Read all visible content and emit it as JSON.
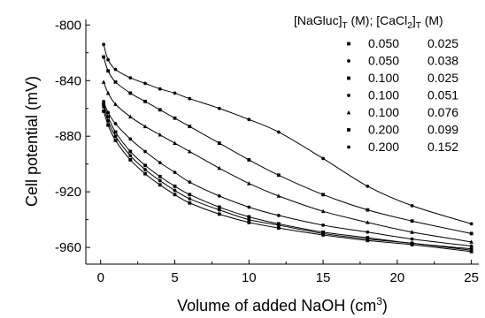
{
  "chart_data": {
    "type": "scatter",
    "xlabel": "Volume of added NaOH (cm",
    "xlabel_sup": "3",
    "xlabel_end": ")",
    "ylabel": "Cell potential (mV)",
    "xlim": [
      -1,
      25.5
    ],
    "ylim": [
      -972,
      -796
    ],
    "x_ticks": [
      0,
      5,
      10,
      15,
      20,
      25
    ],
    "x_tick_labels": [
      "0",
      "5",
      "10",
      "15",
      "20",
      "25"
    ],
    "y_ticks": [
      -800,
      -840,
      -880,
      -920,
      -960
    ],
    "y_tick_labels": [
      "-800",
      "-840",
      "-880",
      "-920",
      "-960"
    ],
    "legend": {
      "header_parts": [
        "[NaGluc]",
        "T",
        " (M); [CaCl",
        "2",
        "]",
        "T",
        " (M)"
      ],
      "placement": "top-right",
      "col1": [
        "0.050",
        "0.050",
        "0.100",
        "0.100",
        "0.100",
        "0.200",
        "0.200"
      ],
      "col2": [
        "0.025",
        "0.038",
        "0.025",
        "0.051",
        "0.076",
        "0.099",
        "0.152"
      ]
    },
    "series": [
      {
        "marker": "square",
        "x": [
          0.2,
          0.5,
          1,
          2,
          3,
          4,
          5,
          6,
          8,
          10,
          12,
          15,
          18,
          21,
          25
        ],
        "y": [
          -862,
          -872,
          -883,
          -897,
          -907,
          -915,
          -922,
          -928,
          -936,
          -942,
          -946,
          -951,
          -955,
          -958,
          -963
        ]
      },
      {
        "marker": "circle",
        "x": [
          0.2,
          0.5,
          1,
          2,
          3,
          4,
          5,
          6,
          8,
          10,
          12,
          15,
          18,
          21,
          25
        ],
        "y": [
          -859,
          -869,
          -880,
          -894,
          -904,
          -912,
          -919,
          -925,
          -933,
          -940,
          -944,
          -950,
          -954,
          -957,
          -962
        ]
      },
      {
        "marker": "square",
        "x": [
          0.2,
          0.5,
          1,
          2,
          3,
          4,
          5,
          6,
          8,
          10,
          12,
          15,
          18,
          21,
          25
        ],
        "y": [
          -857,
          -866,
          -877,
          -891,
          -901,
          -909,
          -916,
          -922,
          -931,
          -938,
          -943,
          -949,
          -953,
          -957,
          -961
        ]
      },
      {
        "marker": "circle",
        "x": [
          0.2,
          0.5,
          1,
          2,
          3,
          4,
          5,
          6,
          8,
          10,
          12,
          15,
          18,
          21,
          25
        ],
        "y": [
          -855,
          -863,
          -871,
          -882,
          -891,
          -899,
          -906,
          -913,
          -923,
          -931,
          -937,
          -944,
          -949,
          -954,
          -959
        ]
      },
      {
        "marker": "triangle",
        "x": [
          0.2,
          0.5,
          1,
          2,
          3,
          4,
          5,
          6,
          8,
          10,
          12,
          15,
          18,
          21,
          25
        ],
        "y": [
          -841,
          -849,
          -857,
          -866,
          -873,
          -879,
          -885,
          -891,
          -903,
          -914,
          -923,
          -934,
          -942,
          -949,
          -956
        ]
      },
      {
        "marker": "square",
        "x": [
          0.2,
          0.5,
          1,
          2,
          3,
          4,
          5,
          6,
          8,
          10,
          12,
          15,
          18,
          21,
          25
        ],
        "y": [
          -823,
          -833,
          -841,
          -849,
          -855,
          -861,
          -867,
          -873,
          -885,
          -897,
          -908,
          -922,
          -933,
          -941,
          -950
        ]
      },
      {
        "marker": "circle",
        "x": [
          0.2,
          0.5,
          1,
          2,
          3,
          4,
          5,
          6,
          8,
          10,
          12,
          15,
          18,
          21,
          25
        ],
        "y": [
          -814,
          -825,
          -832,
          -838,
          -842,
          -846,
          -849,
          -853,
          -860,
          -868,
          -877,
          -896,
          -916,
          -930,
          -943
        ]
      }
    ]
  }
}
